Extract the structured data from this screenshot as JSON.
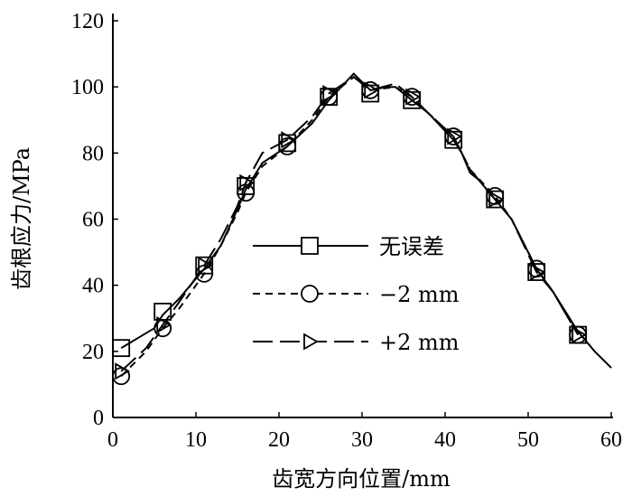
{
  "chart_data": {
    "type": "line",
    "title": "",
    "xlabel": "齿宽方向位置/mm",
    "ylabel": "齿根应力/MPa",
    "xlim": [
      0,
      60
    ],
    "ylim": [
      0,
      120
    ],
    "xticks": [
      "0",
      "10",
      "20",
      "30",
      "40",
      "50",
      "60"
    ],
    "yticks": [
      "0",
      "20",
      "40",
      "60",
      "80",
      "100",
      "120"
    ],
    "grid": false,
    "legend_position": "center",
    "series": [
      {
        "name": "无误差",
        "marker": "square",
        "dash": "solid",
        "x": [
          1,
          3,
          5,
          6,
          8,
          11,
          13,
          15,
          16,
          18,
          21,
          24,
          26,
          29,
          31,
          33,
          34,
          35,
          36,
          38,
          41,
          42,
          43,
          44,
          46,
          48,
          51,
          53,
          56,
          58,
          60
        ],
        "y": [
          21,
          24,
          27,
          31,
          36,
          45,
          52,
          63,
          69,
          77,
          82,
          89,
          96,
          104,
          99,
          100,
          100,
          98,
          96,
          92,
          84,
          80,
          74,
          72,
          66,
          60,
          45,
          38,
          26,
          20,
          15
        ],
        "marker_x": [
          1,
          6,
          11,
          16,
          21,
          26,
          31,
          36,
          41,
          46,
          51,
          56
        ],
        "marker_y": [
          21,
          32,
          46,
          70,
          83,
          97,
          98,
          96,
          84,
          66,
          44,
          25
        ]
      },
      {
        "name": "−2 mm",
        "marker": "circle",
        "dash": "short",
        "x": [
          1,
          4,
          6,
          8,
          11,
          13,
          15,
          16,
          18,
          21,
          24,
          26,
          29,
          31,
          34,
          36,
          38,
          41,
          43,
          46,
          48,
          51,
          53,
          56
        ],
        "y": [
          12.5,
          20,
          27,
          33,
          43.5,
          52,
          62,
          68,
          76,
          82,
          90,
          97,
          103,
          99,
          100,
          97,
          92,
          85,
          75,
          67,
          60,
          45,
          38,
          25
        ],
        "marker_x": [
          1,
          6,
          11,
          16,
          21,
          26,
          31,
          36,
          41,
          46,
          51,
          56
        ],
        "marker_y": [
          12.5,
          27,
          43.5,
          68,
          82,
          97,
          99,
          97,
          85,
          67,
          45,
          25
        ]
      },
      {
        "name": "+2 mm",
        "marker": "triangle-right",
        "dash": "long",
        "x": [
          1,
          4,
          6,
          8,
          11,
          13,
          15,
          16,
          18,
          21,
          24,
          26,
          29,
          31,
          34,
          36,
          38,
          41,
          43,
          46,
          48,
          51,
          53,
          56
        ],
        "y": [
          14,
          21,
          28,
          35,
          46,
          54,
          64,
          71,
          80,
          84,
          91,
          98,
          103,
          99,
          101,
          97,
          92,
          85,
          75,
          66,
          60,
          44,
          38,
          25
        ],
        "marker_x": [
          1,
          6,
          11,
          16,
          21,
          26,
          31,
          36,
          41,
          46,
          51,
          56
        ],
        "marker_y": [
          14,
          28,
          46,
          71,
          84,
          98,
          99,
          97,
          85,
          66,
          44,
          25
        ]
      }
    ]
  }
}
